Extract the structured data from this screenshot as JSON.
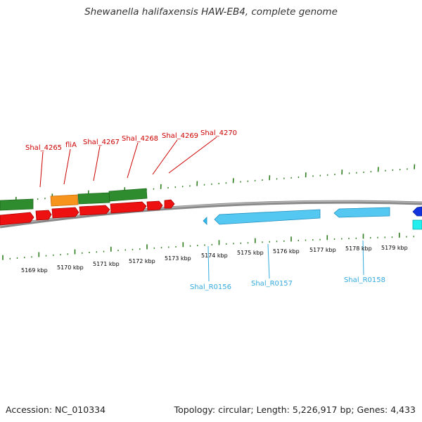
{
  "title": "Shewanella halifaxensis HAW-EB4, complete genome",
  "footer": {
    "accession": "Accession: NC_010334",
    "info": "Topology: circular; Length: 5,226,917 bp; Genes: 4,433"
  },
  "colors": {
    "backbone": "#888888",
    "ticks": "#2e7d1e",
    "gene_forward_green": "#2e8b2e",
    "gene_forward_orange": "#f7941d",
    "gene_reverse_red": "#ee1111",
    "rna_light_blue": "#33bbee",
    "label_red": "#cc0000",
    "label_blue": "#33aadd",
    "ruler_label": "#000000"
  },
  "ruler": {
    "unit": "kbp",
    "labels": [
      "5169 kbp",
      "5170 kbp",
      "5171 kbp",
      "5172 kbp",
      "5173 kbp",
      "5174 kbp",
      "5175 kbp",
      "5176 kbp",
      "5177 kbp",
      "5178 kbp",
      "5179 kbp"
    ]
  },
  "upper_labels": [
    "Shal_4265",
    "fliA",
    "Shal_4267",
    "Shal_4268",
    "Shal_4269",
    "Shal_4270"
  ],
  "lower_labels": [
    "Shal_R0156",
    "Shal_R0157",
    "Shal_R0158"
  ]
}
